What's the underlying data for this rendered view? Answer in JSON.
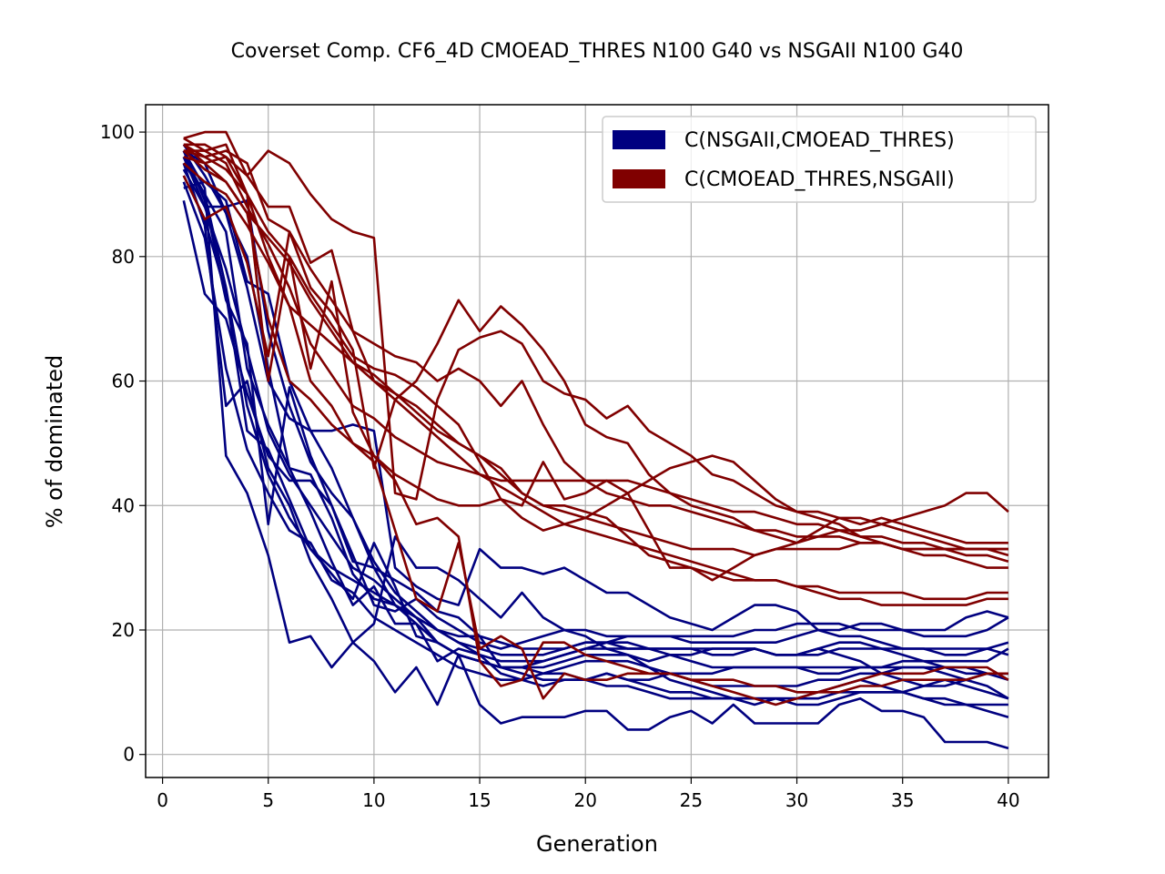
{
  "chart_data": {
    "type": "line",
    "title": "Coverset Comp. CF6_4D CMOEAD_THRES N100 G40 vs NSGAII N100 G40",
    "xlabel": "Generation",
    "ylabel": "% of dominated",
    "xlim": [
      -0.8,
      41.9
    ],
    "ylim": [
      -3.7,
      104.4
    ],
    "xticks": [
      0,
      5,
      10,
      15,
      20,
      25,
      30,
      35,
      40
    ],
    "yticks": [
      0,
      20,
      40,
      60,
      80,
      100
    ],
    "grid": true,
    "legend_position": "top-right",
    "legend": [
      {
        "label": "C(NSGAII,CMOEAD_THRES)",
        "color": "#000080"
      },
      {
        "label": "C(CMOEAD_THRES,NSGAII)",
        "color": "#800000"
      }
    ],
    "x": [
      1,
      2,
      3,
      4,
      5,
      6,
      7,
      8,
      9,
      10,
      11,
      12,
      13,
      14,
      15,
      16,
      17,
      18,
      19,
      20,
      21,
      22,
      23,
      24,
      25,
      26,
      27,
      28,
      29,
      30,
      31,
      32,
      33,
      34,
      35,
      36,
      37,
      38,
      39,
      40
    ],
    "series": [
      {
        "group": "blue",
        "color": "#000080",
        "values": [
          97,
          91,
          48,
          42,
          32,
          18,
          19,
          14,
          18,
          15,
          10,
          14,
          8,
          16,
          8,
          5,
          6,
          6,
          6,
          7,
          7,
          4,
          4,
          6,
          7,
          5,
          8,
          5,
          5,
          5,
          5,
          8,
          9,
          7,
          7,
          6,
          2,
          2,
          2,
          1
        ]
      },
      {
        "group": "blue",
        "color": "#000080",
        "values": [
          95,
          85,
          56,
          60,
          46,
          40,
          31,
          25,
          18,
          21,
          35,
          30,
          30,
          28,
          25,
          22,
          26,
          22,
          20,
          19,
          17,
          16,
          14,
          12,
          11,
          10,
          9,
          9,
          9,
          9,
          10,
          11,
          12,
          11,
          10,
          9,
          8,
          8,
          7,
          6
        ]
      },
      {
        "group": "blue",
        "color": "#000080",
        "values": [
          92,
          83,
          62,
          49,
          42,
          36,
          34,
          28,
          26,
          22,
          20,
          18,
          16,
          14,
          13,
          12,
          12,
          13,
          13,
          12,
          13,
          12,
          11,
          10,
          10,
          9,
          9,
          8,
          9,
          8,
          8,
          9,
          10,
          10,
          10,
          9,
          9,
          8,
          8,
          8
        ]
      },
      {
        "group": "blue",
        "color": "#000080",
        "values": [
          96,
          88,
          78,
          65,
          52,
          45,
          40,
          35,
          30,
          28,
          25,
          22,
          20,
          18,
          17,
          16,
          16,
          16,
          17,
          18,
          18,
          17,
          17,
          17,
          17,
          16,
          16,
          17,
          16,
          16,
          17,
          18,
          18,
          17,
          16,
          15,
          14,
          13,
          13,
          13
        ]
      },
      {
        "group": "blue",
        "color": "#000080",
        "values": [
          89,
          74,
          70,
          58,
          48,
          44,
          44,
          40,
          32,
          24,
          23,
          25,
          22,
          20,
          18,
          17,
          18,
          19,
          20,
          20,
          19,
          19,
          19,
          19,
          19,
          19,
          19,
          20,
          20,
          21,
          21,
          21,
          20,
          20,
          20,
          20,
          20,
          22,
          23,
          22
        ]
      },
      {
        "group": "blue",
        "color": "#000080",
        "values": [
          97,
          95,
          87,
          75,
          60,
          54,
          52,
          52,
          53,
          52,
          30,
          27,
          25,
          24,
          33,
          30,
          30,
          29,
          30,
          28,
          26,
          26,
          24,
          22,
          21,
          20,
          22,
          24,
          24,
          23,
          20,
          19,
          19,
          18,
          17,
          17,
          16,
          16,
          17,
          16
        ]
      },
      {
        "group": "blue",
        "color": "#000080",
        "values": [
          98,
          93,
          87,
          80,
          62,
          46,
          45,
          38,
          29,
          25,
          24,
          22,
          18,
          16,
          15,
          14,
          14,
          14,
          15,
          16,
          16,
          16,
          15,
          16,
          16,
          17,
          17,
          17,
          16,
          16,
          17,
          16,
          15,
          13,
          12,
          11,
          12,
          11,
          10,
          9
        ]
      },
      {
        "group": "blue",
        "color": "#000080",
        "values": [
          97,
          89,
          73,
          66,
          37,
          59,
          48,
          40,
          31,
          30,
          28,
          26,
          23,
          22,
          19,
          14,
          13,
          12,
          12,
          12,
          11,
          11,
          10,
          9,
          9,
          9,
          9,
          9,
          9,
          9,
          9,
          10,
          10,
          10,
          10,
          11,
          11,
          12,
          13,
          12
        ]
      },
      {
        "group": "blue",
        "color": "#000080",
        "values": [
          96,
          90,
          84,
          62,
          53,
          46,
          39,
          31,
          24,
          27,
          21,
          21,
          15,
          17,
          16,
          13,
          12,
          11,
          12,
          12,
          13,
          12,
          12,
          13,
          13,
          13,
          14,
          14,
          14,
          14,
          13,
          13,
          14,
          14,
          15,
          15,
          15,
          15,
          15,
          17
        ]
      },
      {
        "group": "blue",
        "color": "#000080",
        "values": [
          93,
          86,
          74,
          52,
          49,
          41,
          33,
          29,
          25,
          34,
          27,
          19,
          18,
          16,
          15,
          14,
          14,
          13,
          14,
          15,
          15,
          15,
          14,
          13,
          12,
          11,
          11,
          11,
          11,
          11,
          12,
          12,
          13,
          13,
          14,
          14,
          14,
          14,
          13,
          13
        ]
      },
      {
        "group": "blue",
        "color": "#000080",
        "values": [
          95,
          90,
          75,
          56,
          45,
          38,
          33,
          30,
          28,
          26,
          24,
          22,
          20,
          18,
          16,
          15,
          15,
          15,
          16,
          17,
          18,
          19,
          19,
          19,
          18,
          18,
          18,
          18,
          18,
          19,
          20,
          20,
          21,
          21,
          20,
          19,
          19,
          19,
          20,
          22
        ]
      },
      {
        "group": "blue",
        "color": "#000080",
        "values": [
          91,
          92,
          89,
          76,
          74,
          60,
          52,
          46,
          38,
          30,
          24,
          21,
          18,
          16,
          15,
          14,
          14,
          15,
          16,
          17,
          17,
          17,
          17,
          17,
          17,
          17,
          17,
          17,
          16,
          16,
          16,
          17,
          17,
          17,
          17,
          17,
          17,
          17,
          17,
          18
        ]
      },
      {
        "group": "blue",
        "color": "#000080",
        "values": [
          94,
          88,
          88,
          89,
          68,
          56,
          47,
          42,
          38,
          31,
          26,
          23,
          20,
          19,
          19,
          18,
          17,
          17,
          17,
          18,
          18,
          18,
          17,
          16,
          15,
          14,
          14,
          14,
          14,
          14,
          14,
          14,
          14,
          14,
          14,
          14,
          13,
          12,
          11,
          9
        ]
      },
      {
        "group": "red",
        "color": "#800000",
        "values": [
          99,
          100,
          100,
          93,
          97,
          95,
          90,
          86,
          84,
          83,
          42,
          41,
          57,
          65,
          67,
          68,
          66,
          60,
          58,
          57,
          54,
          56,
          52,
          50,
          48,
          45,
          44,
          42,
          40,
          39,
          39,
          38,
          37,
          38,
          37,
          36,
          35,
          34,
          34,
          34
        ]
      },
      {
        "group": "red",
        "color": "#800000",
        "values": [
          98,
          98,
          96,
          93,
          88,
          88,
          79,
          81,
          68,
          66,
          64,
          63,
          60,
          62,
          60,
          56,
          60,
          53,
          47,
          44,
          42,
          41,
          40,
          40,
          39,
          38,
          37,
          36,
          36,
          35,
          35,
          35,
          34,
          34,
          33,
          33,
          33,
          32,
          32,
          31
        ]
      },
      {
        "group": "red",
        "color": "#800000",
        "values": [
          97,
          97,
          95,
          88,
          82,
          75,
          66,
          61,
          56,
          54,
          51,
          49,
          47,
          46,
          45,
          44,
          44,
          44,
          44,
          44,
          44,
          44,
          43,
          42,
          41,
          40,
          39,
          39,
          38,
          37,
          37,
          36,
          35,
          35,
          34,
          34,
          33,
          33,
          33,
          32
        ]
      },
      {
        "group": "red",
        "color": "#800000",
        "values": [
          93,
          86,
          88,
          79,
          64,
          84,
          75,
          71,
          65,
          46,
          57,
          60,
          66,
          73,
          68,
          72,
          69,
          65,
          60,
          53,
          51,
          50,
          45,
          42,
          40,
          39,
          38,
          36,
          35,
          34,
          36,
          38,
          38,
          37,
          38,
          39,
          40,
          42,
          42,
          39
        ]
      },
      {
        "group": "red",
        "color": "#800000",
        "values": [
          98,
          95,
          96,
          90,
          80,
          72,
          60,
          56,
          50,
          47,
          36,
          25,
          23,
          34,
          17,
          19,
          17,
          9,
          13,
          12,
          12,
          13,
          13,
          13,
          12,
          11,
          10,
          9,
          8,
          9,
          10,
          11,
          12,
          13,
          13,
          13,
          14,
          14,
          14,
          12
        ]
      },
      {
        "group": "red",
        "color": "#800000",
        "values": [
          97,
          94,
          92,
          87,
          70,
          60,
          57,
          53,
          50,
          48,
          45,
          43,
          41,
          40,
          40,
          41,
          40,
          47,
          41,
          42,
          44,
          42,
          36,
          30,
          30,
          28,
          30,
          32,
          33,
          34,
          35,
          36,
          36,
          37,
          36,
          35,
          34,
          33,
          33,
          33
        ]
      },
      {
        "group": "red",
        "color": "#800000",
        "values": [
          96,
          95,
          92,
          87,
          83,
          79,
          73,
          68,
          63,
          61,
          58,
          55,
          52,
          50,
          48,
          46,
          42,
          40,
          40,
          39,
          38,
          35,
          32,
          31,
          30,
          29,
          28,
          28,
          28,
          27,
          27,
          26,
          26,
          26,
          26,
          25,
          25,
          25,
          26,
          26
        ]
      },
      {
        "group": "red",
        "color": "#800000",
        "values": [
          99,
          97,
          98,
          90,
          60,
          80,
          62,
          76,
          55,
          48,
          44,
          37,
          38,
          35,
          15,
          11,
          12,
          18,
          18,
          16,
          15,
          14,
          13,
          13,
          12,
          12,
          12,
          11,
          11,
          10,
          10,
          10,
          11,
          11,
          12,
          12,
          12,
          12,
          13,
          13
        ]
      },
      {
        "group": "red",
        "color": "#800000",
        "values": [
          98,
          96,
          97,
          95,
          86,
          84,
          78,
          73,
          68,
          60,
          58,
          56,
          53,
          50,
          48,
          45,
          42,
          40,
          39,
          38,
          37,
          36,
          35,
          34,
          33,
          33,
          33,
          32,
          33,
          33,
          33,
          33,
          34,
          34,
          33,
          32,
          32,
          31,
          30,
          30
        ]
      },
      {
        "group": "red",
        "color": "#800000",
        "values": [
          95,
          92,
          90,
          85,
          79,
          72,
          69,
          66,
          63,
          60,
          57,
          54,
          51,
          48,
          45,
          43,
          41,
          39,
          37,
          36,
          35,
          34,
          33,
          32,
          31,
          30,
          29,
          28,
          28,
          27,
          26,
          25,
          25,
          24,
          24,
          24,
          24,
          24,
          25,
          25
        ]
      },
      {
        "group": "red",
        "color": "#800000",
        "values": [
          97,
          96,
          94,
          90,
          84,
          80,
          74,
          69,
          64,
          62,
          61,
          59,
          56,
          53,
          47,
          41,
          38,
          36,
          37,
          38,
          40,
          42,
          44,
          46,
          47,
          48,
          47,
          44,
          41,
          39,
          38,
          37,
          35,
          34,
          33,
          33,
          33,
          33,
          33,
          33
        ]
      }
    ]
  }
}
